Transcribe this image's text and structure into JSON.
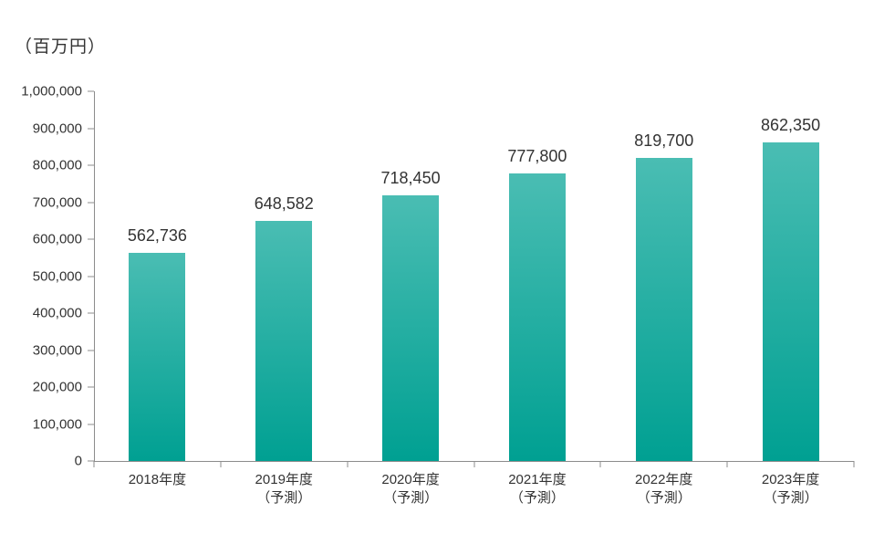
{
  "colors": {
    "bar_gradient_top": "#4abdb3",
    "bar_gradient_bottom": "#00a092",
    "axis": "#8c8c8c",
    "text": "#333333"
  },
  "chart_data": {
    "type": "bar",
    "title": "",
    "unit_label": "（百万円）",
    "categories": [
      {
        "year": "2018年度",
        "note": ""
      },
      {
        "year": "2019年度",
        "note": "（予測）"
      },
      {
        "year": "2020年度",
        "note": "（予測）"
      },
      {
        "year": "2021年度",
        "note": "（予測）"
      },
      {
        "year": "2022年度",
        "note": "（予測）"
      },
      {
        "year": "2023年度",
        "note": "（予測）"
      }
    ],
    "values": [
      562736,
      648582,
      718450,
      777800,
      819700,
      862350
    ],
    "value_labels": [
      "562,736",
      "648,582",
      "718,450",
      "777,800",
      "819,700",
      "862,350"
    ],
    "ylim": [
      0,
      1000000
    ],
    "ytick_step": 100000,
    "ytick_labels": [
      "0",
      "100,000",
      "200,000",
      "300,000",
      "400,000",
      "500,000",
      "600,000",
      "700,000",
      "800,000",
      "900,000",
      "1,000,000"
    ],
    "grid": false,
    "legend": false
  }
}
